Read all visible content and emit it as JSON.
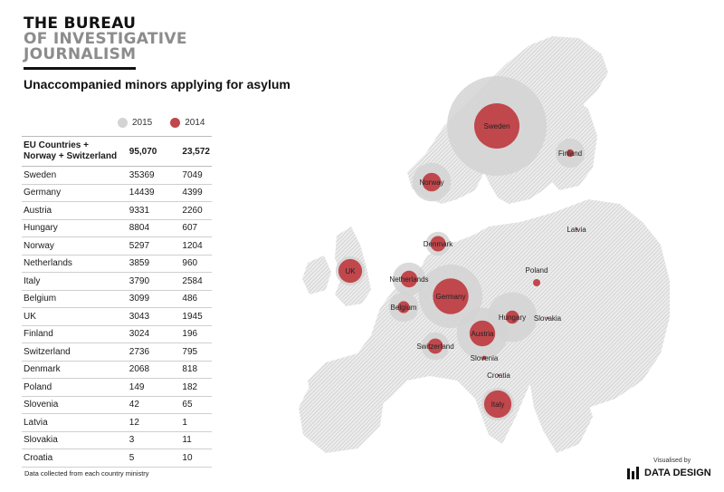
{
  "brand": {
    "line1": "THE BUREAU",
    "line2": "OF INVESTIGATIVE",
    "line3": "JOURNALISM"
  },
  "title": "Unaccompanied minors applying for asylum",
  "legend": {
    "items": [
      {
        "label": "2015",
        "color": "#d3d3d3"
      },
      {
        "label": "2014",
        "color": "#c0474c"
      }
    ]
  },
  "totals": {
    "label_line1": "EU Countries +",
    "label_line2": "Norway + Switzerland",
    "value_2015": "95,070",
    "value_2014": "23,572"
  },
  "rows": [
    {
      "country": "Sweden",
      "v2015": "35369",
      "v2014": "7049"
    },
    {
      "country": "Germany",
      "v2015": "14439",
      "v2014": "4399"
    },
    {
      "country": "Austria",
      "v2015": "9331",
      "v2014": "2260"
    },
    {
      "country": "Hungary",
      "v2015": "8804",
      "v2014": "607"
    },
    {
      "country": "Norway",
      "v2015": "5297",
      "v2014": "1204"
    },
    {
      "country": "Netherlands",
      "v2015": "3859",
      "v2014": "960"
    },
    {
      "country": "Italy",
      "v2015": "3790",
      "v2014": "2584"
    },
    {
      "country": "Belgium",
      "v2015": "3099",
      "v2014": "486"
    },
    {
      "country": "UK",
      "v2015": "3043",
      "v2014": "1945"
    },
    {
      "country": "Finland",
      "v2015": "3024",
      "v2014": "196"
    },
    {
      "country": "Switzerland",
      "v2015": "2736",
      "v2014": "795"
    },
    {
      "country": "Denmark",
      "v2015": "2068",
      "v2014": "818"
    },
    {
      "country": "Poland",
      "v2015": "149",
      "v2014": "182"
    },
    {
      "country": "Slovenia",
      "v2015": "42",
      "v2014": "65"
    },
    {
      "country": "Latvia",
      "v2015": "12",
      "v2014": "1"
    },
    {
      "country": "Slovakia",
      "v2015": "3",
      "v2014": "11"
    },
    {
      "country": "Croatia",
      "v2015": "5",
      "v2014": "10"
    }
  ],
  "footnote": "Data collected from each country ministry",
  "credit": {
    "visualised_by": "Visualised by",
    "studio": "DATA DESIGN"
  },
  "map_labels": {
    "Sweden": "Sweden",
    "Finland": "Finland",
    "Norway": "Norway",
    "Latvia": "Latvia",
    "Denmark": "Denmark",
    "UK": "UK",
    "Netherlands": "Netherlands",
    "Poland": "Poland",
    "Germany": "Germany",
    "Belgium": "Belgium",
    "Hungary": "Hungary",
    "Slovakia": "Slovakia",
    "Austria": "Austria",
    "Switzerland": "Switzerland",
    "Slovenia": "Slovenia",
    "Croatia": "Croatia",
    "Italy": "Italy"
  },
  "colors": {
    "circle_2015": "#d3d3d3",
    "circle_2014": "#c0474c",
    "land": "#d9d9d9"
  }
}
